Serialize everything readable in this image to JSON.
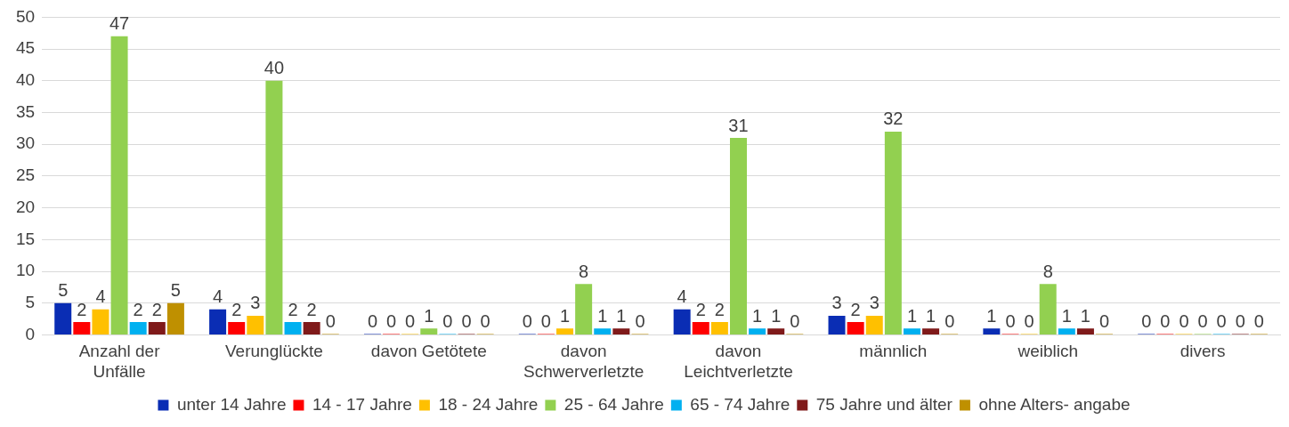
{
  "chart_data": {
    "type": "bar",
    "categories": [
      "Anzahl der Unfälle",
      "Verunglückte",
      "davon Getötete",
      "davon Schwerverletzte",
      "davon Leichtverletzte",
      "männlich",
      "weiblich",
      "divers"
    ],
    "series": [
      {
        "name": "unter 14 Jahre",
        "color": "#0a2db4",
        "values": [
          5,
          4,
          0,
          0,
          4,
          3,
          1,
          0
        ]
      },
      {
        "name": "14 - 17 Jahre",
        "color": "#ff0000",
        "values": [
          2,
          2,
          0,
          0,
          2,
          2,
          0,
          0
        ]
      },
      {
        "name": "18 - 24 Jahre",
        "color": "#ffc000",
        "values": [
          4,
          3,
          0,
          1,
          2,
          3,
          0,
          0
        ]
      },
      {
        "name": "25 - 64 Jahre",
        "color": "#92d050",
        "values": [
          47,
          40,
          1,
          8,
          31,
          32,
          8,
          0
        ]
      },
      {
        "name": "65 - 74 Jahre",
        "color": "#00b0f0",
        "values": [
          2,
          2,
          0,
          1,
          1,
          1,
          1,
          0
        ]
      },
      {
        "name": "75 Jahre und älter",
        "color": "#7f1a1a",
        "values": [
          2,
          2,
          0,
          1,
          1,
          1,
          1,
          0
        ]
      },
      {
        "name": "ohne Alters- angabe",
        "color": "#bf9000",
        "values": [
          5,
          0,
          0,
          0,
          0,
          0,
          0,
          0
        ]
      }
    ],
    "ylim": [
      0,
      50
    ],
    "yticks": [
      0,
      5,
      10,
      15,
      20,
      25,
      30,
      35,
      40,
      45,
      50
    ],
    "grid": "y",
    "legend": "bottom",
    "data_labels": true
  }
}
